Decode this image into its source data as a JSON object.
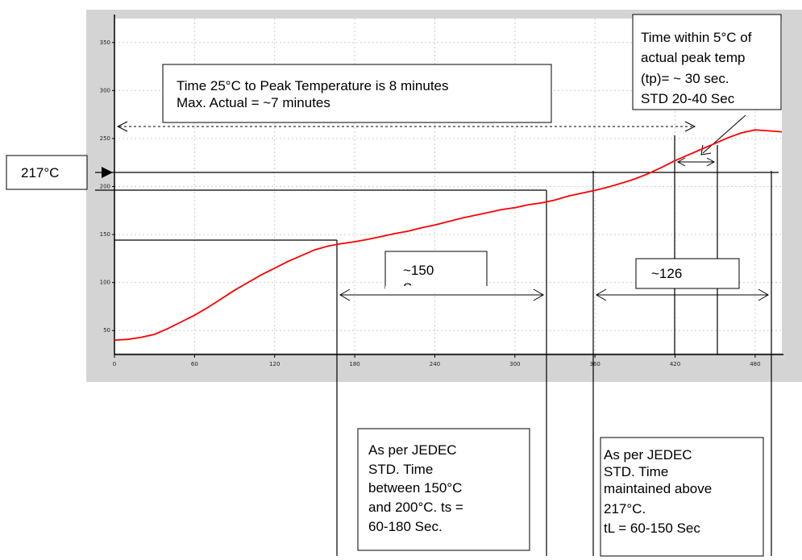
{
  "chart_data": {
    "type": "line",
    "title": "",
    "xlabel": "",
    "ylabel": "",
    "xlim": [
      0,
      500
    ],
    "ylim": [
      25,
      375
    ],
    "grid": true,
    "x_ticks": [
      0,
      60,
      120,
      180,
      240,
      300,
      360,
      420,
      480
    ],
    "y_ticks": [
      50,
      100,
      150,
      200,
      250,
      300,
      350
    ],
    "x_tick_labels": [
      "0",
      "60",
      "120",
      "180",
      "240",
      "300",
      "360",
      "420",
      "480"
    ],
    "y_tick_labels": [
      "50",
      "100",
      "150",
      "200",
      "250",
      "300",
      "350"
    ],
    "series": [
      {
        "color": "#ff0000",
        "x": [
          0,
          10,
          20,
          30,
          40,
          50,
          60,
          70,
          80,
          90,
          100,
          110,
          120,
          130,
          140,
          150,
          160,
          170,
          180,
          190,
          200,
          210,
          220,
          230,
          240,
          250,
          260,
          270,
          280,
          290,
          300,
          310,
          320,
          330,
          340,
          350,
          360,
          370,
          380,
          390,
          400,
          410,
          420,
          430,
          440,
          450,
          460,
          470,
          480,
          490,
          500
        ],
        "y": [
          40,
          40.8,
          43,
          46,
          52,
          59,
          66,
          74,
          83,
          92,
          100,
          108,
          115,
          122,
          128,
          134,
          138,
          140.5,
          142.5,
          145,
          148,
          151,
          153.5,
          157,
          160,
          163.5,
          167,
          170,
          173,
          176,
          178,
          181,
          183,
          186,
          190,
          193,
          196,
          199.5,
          203.5,
          208,
          213.5,
          220,
          227,
          233,
          239,
          245,
          251,
          256,
          259,
          258,
          257
        ]
      }
    ],
    "annotations": {
      "label_217": "217°C",
      "box_time_to_peak": [
        "Time 25°C to Peak Temperature is 8 minutes",
        "Max.   Actual = ~7 minutes"
      ],
      "box_peak_window": [
        "Time within 5°C of",
        "actual peak temp",
        "(tp)= ~ 30 sec.",
        "STD 20-40 Sec"
      ],
      "label_soak_duration": [
        "~150",
        "S"
      ],
      "label_above_217_duration": "~126",
      "box_jedec_soak": [
        "As per JEDEC",
        "STD. Time",
        "between 150°C",
        "and 200°C.  ts =",
        "60-180 Sec."
      ],
      "box_jedec_liquidus": [
        "As per JEDEC",
        "STD. Time",
        "maintained above",
        "217°C.",
        "tL = 60-150 Sec"
      ]
    }
  }
}
